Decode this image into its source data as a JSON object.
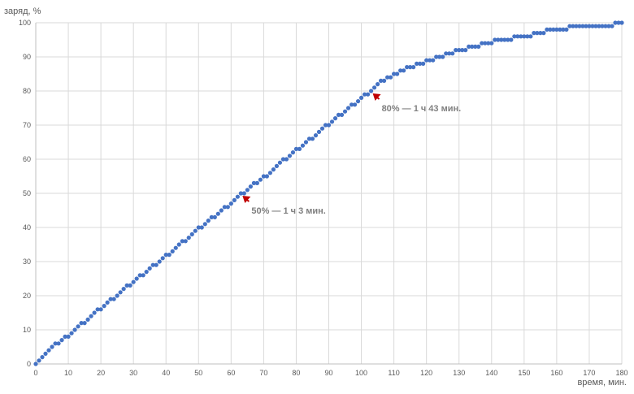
{
  "chart_data": {
    "type": "scatter",
    "ylabel": "заряд, %",
    "xlabel": "время, мин.",
    "xlim": [
      0,
      180
    ],
    "ylim": [
      0,
      100
    ],
    "xticks": [
      0,
      10,
      20,
      30,
      40,
      50,
      60,
      70,
      80,
      90,
      100,
      110,
      120,
      130,
      140,
      150,
      160,
      170,
      180
    ],
    "yticks": [
      0,
      10,
      20,
      30,
      40,
      50,
      60,
      70,
      80,
      90,
      100
    ],
    "grid": true,
    "marker_color": "#4472c4",
    "series": [
      {
        "x": [
          0,
          1,
          2,
          3,
          4,
          5,
          6,
          7,
          8,
          9,
          10,
          11,
          12,
          13,
          14,
          15,
          16,
          17,
          18,
          19,
          20,
          21,
          22,
          23,
          24,
          25,
          26,
          27,
          28,
          29,
          30,
          31,
          32,
          33,
          34,
          35,
          36,
          37,
          38,
          39,
          40,
          41,
          42,
          43,
          44,
          45,
          46,
          47,
          48,
          49,
          50,
          51,
          52,
          53,
          54,
          55,
          56,
          57,
          58,
          59,
          60,
          61,
          62,
          63,
          64,
          65,
          66,
          67,
          68,
          69,
          70,
          71,
          72,
          73,
          74,
          75,
          76,
          77,
          78,
          79,
          80,
          81,
          82,
          83,
          84,
          85,
          86,
          87,
          88,
          89,
          90,
          91,
          92,
          93,
          94,
          95,
          96,
          97,
          98,
          99,
          100,
          101,
          102,
          103,
          104,
          105,
          106,
          107,
          108,
          109,
          110,
          111,
          112,
          113,
          114,
          115,
          116,
          117,
          118,
          119,
          120,
          121,
          122,
          123,
          124,
          125,
          126,
          127,
          128,
          129,
          130,
          131,
          132,
          133,
          134,
          135,
          136,
          137,
          138,
          139,
          140,
          141,
          142,
          143,
          144,
          145,
          146,
          147,
          148,
          149,
          150,
          151,
          152,
          153,
          154,
          155,
          156,
          157,
          158,
          159,
          160,
          161,
          162,
          163,
          164,
          165,
          166,
          167,
          168,
          169,
          170,
          171,
          172,
          173,
          174,
          175,
          176,
          177,
          178,
          179,
          180
        ],
        "y": [
          0,
          1,
          2,
          3,
          4,
          5,
          6,
          6,
          7,
          8,
          8,
          9,
          10,
          11,
          12,
          12,
          13,
          14,
          15,
          16,
          16,
          17,
          18,
          19,
          19,
          20,
          21,
          22,
          23,
          23,
          24,
          25,
          26,
          26,
          27,
          28,
          29,
          29,
          30,
          31,
          32,
          32,
          33,
          34,
          35,
          36,
          36,
          37,
          38,
          39,
          40,
          40,
          41,
          42,
          43,
          43,
          44,
          45,
          46,
          46,
          47,
          48,
          49,
          50,
          50,
          51,
          52,
          53,
          53,
          54,
          55,
          55,
          56,
          57,
          58,
          59,
          60,
          60,
          61,
          62,
          63,
          63,
          64,
          65,
          66,
          66,
          67,
          68,
          69,
          70,
          70,
          71,
          72,
          73,
          73,
          74,
          75,
          76,
          76,
          77,
          78,
          79,
          79,
          80,
          81,
          82,
          83,
          83,
          84,
          84,
          85,
          85,
          86,
          86,
          87,
          87,
          87,
          88,
          88,
          88,
          89,
          89,
          89,
          90,
          90,
          90,
          91,
          91,
          91,
          92,
          92,
          92,
          92,
          93,
          93,
          93,
          93,
          94,
          94,
          94,
          94,
          95,
          95,
          95,
          95,
          95,
          95,
          96,
          96,
          96,
          96,
          96,
          96,
          97,
          97,
          97,
          97,
          98,
          98,
          98,
          98,
          98,
          98,
          98,
          99,
          99,
          99,
          99,
          99,
          99,
          99,
          99,
          99,
          99,
          99,
          99,
          99,
          99,
          100,
          100,
          100
        ]
      }
    ],
    "annotations": [
      {
        "text": "50% — 1 ч 3 мин.",
        "x": 63,
        "y": 50
      },
      {
        "text": "80% — 1 ч 43 мин.",
        "x": 103,
        "y": 80
      }
    ],
    "annotation_arrow_color": "#c00000"
  }
}
